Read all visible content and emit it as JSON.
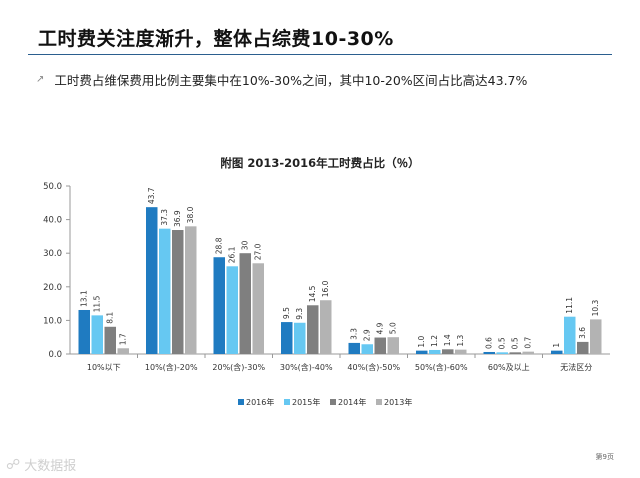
{
  "slide": {
    "title": "工时费关注度渐升，整体占综费10-30%",
    "bullet": "工时费占维保费用比例主要集中在10%-30%之间，其中10-20%区间占比高达43.7%",
    "watermark": "大数据报",
    "page_number": "第9页"
  },
  "chart_data": {
    "type": "bar",
    "title": "附图  2013-2016年工时费占比（％）",
    "categories": [
      "10%以下",
      "10%(含)-20%",
      "20%(含)-30%",
      "30%(含)-40%",
      "40%(含)-50%",
      "50%(含)-60%",
      "60%及以上",
      "无法区分"
    ],
    "y_ticks": [
      "0.0",
      "10.0",
      "20.0",
      "30.0",
      "40.0",
      "50.0"
    ],
    "ylim": [
      0,
      50
    ],
    "grid": false,
    "legend_position": "bottom",
    "series": [
      {
        "name": "2016年",
        "color": "#1f7bc1",
        "values": [
          13.1,
          43.7,
          28.8,
          9.5,
          3.3,
          1.0,
          0.6,
          1
        ],
        "labels": [
          "13.1",
          "43.7",
          "28.8",
          "9.5",
          "3.3",
          "1.0",
          "0.6",
          "1"
        ]
      },
      {
        "name": "2015年",
        "color": "#66c8f2",
        "values": [
          11.5,
          37.3,
          26.1,
          9.3,
          2.9,
          1.2,
          0.5,
          11.1
        ],
        "labels": [
          "11.5",
          "37.3",
          "26.1",
          "9.3",
          "2.9",
          "1.2",
          "0.5",
          "11.1"
        ]
      },
      {
        "name": "2014年",
        "color": "#7f7f7f",
        "values": [
          8.1,
          36.9,
          30,
          14.5,
          4.9,
          1.4,
          0.5,
          3.6
        ],
        "labels": [
          "8.1",
          "36.9",
          "30",
          "14.5",
          "4.9",
          "1.4",
          "0.5",
          "3.6"
        ]
      },
      {
        "name": "2013年",
        "color": "#b3b3b3",
        "values": [
          1.7,
          38.0,
          27.0,
          16.0,
          5.0,
          1.3,
          0.7,
          10.3
        ],
        "labels": [
          "1.7",
          "38.0",
          "27.0",
          "16.0",
          "5.0",
          "1.3",
          "0.7",
          "10.3"
        ]
      }
    ]
  }
}
